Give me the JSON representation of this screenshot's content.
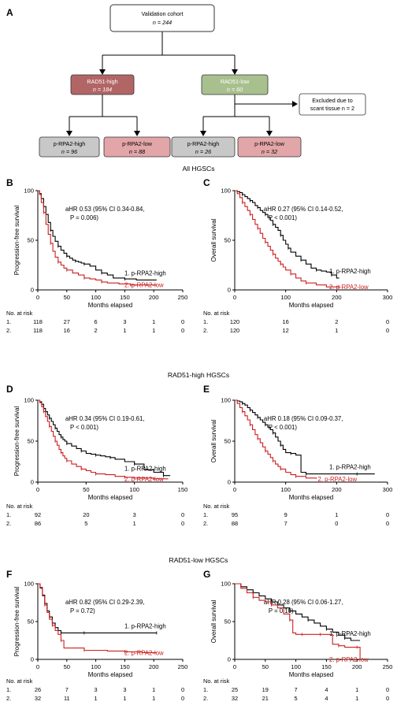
{
  "panel_letters": {
    "A": "A",
    "B": "B",
    "C": "C",
    "D": "D",
    "E": "E",
    "F": "F",
    "G": "G"
  },
  "flowchart": {
    "cohort": {
      "title": "Validation cohort",
      "n": "n = 244"
    },
    "rad51_high": {
      "title": "RAD51-high",
      "n": "n = 184"
    },
    "rad51_low": {
      "title": "RAD51-low",
      "n": "n = 60"
    },
    "excluded": {
      "line1": "Excluded due to",
      "line2": "scant tissue n = 2"
    },
    "leaves": [
      {
        "title": "p-RPA2-high",
        "n": "n = 96"
      },
      {
        "title": "p-RPA2-low",
        "n": "n = 88"
      },
      {
        "title": "p-RPA2-high",
        "n": "n = 26"
      },
      {
        "title": "p-RPA2-low",
        "n": "n = 32"
      }
    ],
    "colors": {
      "high_fill": "#b26565",
      "low_fill": "#a8c08e",
      "grey_fill": "#c8c8c8",
      "pink_fill": "#e2a6a8"
    }
  },
  "sections": {
    "all": "All HGSCs",
    "rad51_high": "RAD51-high HGSCs",
    "rad51_low": "RAD51-low HGSCs"
  },
  "colors": {
    "high_curve": "#000000",
    "low_curve": "#cc1f1f"
  },
  "risk_table_label": "No. at risk",
  "chart_data": [
    {
      "id": "B",
      "type": "line",
      "ylabel": "Progression-free survival",
      "xlabel": "Months elapsed",
      "xlim": [
        0,
        250
      ],
      "ylim": [
        0,
        100
      ],
      "xticks": [
        "0",
        "50",
        "100",
        "150",
        "200",
        "250"
      ],
      "yticks": [
        "0",
        "50",
        "100"
      ],
      "annotation": {
        "line1": "aHR 0.53 (95% CI 0.34-0.84,",
        "line2": "P = 0.006)"
      },
      "series": [
        {
          "name": "1. p-RPA2-high",
          "color": "#000000",
          "x": [
            0,
            3,
            6,
            10,
            14,
            18,
            22,
            26,
            30,
            35,
            40,
            45,
            50,
            55,
            60,
            65,
            70,
            75,
            80,
            90,
            100,
            110,
            120,
            130,
            150,
            170,
            205
          ],
          "y": [
            100,
            97,
            92,
            84,
            76,
            68,
            60,
            54,
            49,
            44,
            40,
            37,
            34,
            32,
            30,
            29,
            28,
            27,
            26,
            24,
            20,
            17,
            15,
            12,
            11,
            10,
            10
          ]
        },
        {
          "name": "2. p-RPA2-low",
          "color": "#cc1f1f",
          "x": [
            0,
            3,
            6,
            10,
            14,
            18,
            22,
            26,
            30,
            35,
            40,
            45,
            50,
            60,
            70,
            80,
            90,
            100,
            110,
            120,
            140,
            160,
            190,
            205
          ],
          "y": [
            100,
            96,
            88,
            78,
            66,
            56,
            47,
            39,
            33,
            28,
            25,
            22,
            20,
            17,
            15,
            12,
            11,
            10,
            8,
            7,
            6,
            5,
            5,
            5
          ]
        }
      ],
      "risk": {
        "ticks": [
          0,
          50,
          100,
          150,
          200,
          250
        ],
        "rows": [
          {
            "label": "1.",
            "values": [
              "118",
              "27",
              "6",
              "3",
              "1",
              "0"
            ]
          },
          {
            "label": "2.",
            "values": [
              "118",
              "16",
              "2",
              "1",
              "1",
              "0"
            ]
          }
        ]
      }
    },
    {
      "id": "C",
      "type": "line",
      "ylabel": "Overall survival",
      "xlabel": "Months elapsed",
      "xlim": [
        0,
        300
      ],
      "ylim": [
        0,
        100
      ],
      "xticks": [
        "0",
        "100",
        "200",
        "300"
      ],
      "yticks": [
        "0",
        "50",
        "100"
      ],
      "annotation": {
        "line1": "aHR 0.27 (95% CI 0.14-0.52,",
        "line2": "P < 0.001)"
      },
      "series": [
        {
          "name": "1. p-RPA2-high",
          "color": "#000000",
          "x": [
            0,
            5,
            10,
            15,
            20,
            25,
            30,
            35,
            40,
            45,
            50,
            55,
            60,
            65,
            70,
            75,
            80,
            85,
            90,
            95,
            100,
            105,
            110,
            120,
            130,
            140,
            150,
            160,
            170,
            180,
            190,
            200,
            205
          ],
          "y": [
            100,
            99,
            98,
            96,
            94,
            92,
            90,
            88,
            85,
            83,
            80,
            78,
            76,
            73,
            70,
            66,
            63,
            60,
            55,
            50,
            46,
            42,
            38,
            34,
            30,
            26,
            22,
            20,
            19,
            18,
            15,
            12,
            12
          ]
        },
        {
          "name": "2. p-RPA2-low",
          "color": "#cc1f1f",
          "x": [
            0,
            5,
            10,
            15,
            20,
            25,
            30,
            35,
            40,
            45,
            50,
            55,
            60,
            65,
            70,
            75,
            80,
            85,
            90,
            95,
            100,
            110,
            120,
            130,
            140,
            160,
            180,
            205
          ],
          "y": [
            100,
            97,
            93,
            88,
            84,
            80,
            76,
            71,
            66,
            62,
            57,
            52,
            48,
            44,
            40,
            36,
            32,
            29,
            26,
            23,
            20,
            16,
            12,
            9,
            7,
            5,
            3,
            3
          ]
        }
      ],
      "risk": {
        "ticks": [
          0,
          100,
          200,
          300
        ],
        "rows": [
          {
            "label": "1.",
            "values": [
              "120",
              "16",
              "2",
              "0"
            ]
          },
          {
            "label": "2.",
            "values": [
              "120",
              "12",
              "1",
              "0"
            ]
          }
        ]
      }
    },
    {
      "id": "D",
      "type": "line",
      "ylabel": "Progression-free survival",
      "xlabel": "Months elapsed",
      "xlim": [
        0,
        150
      ],
      "ylim": [
        0,
        100
      ],
      "xticks": [
        "0",
        "50",
        "100",
        "150"
      ],
      "yticks": [
        "0",
        "50",
        "100"
      ],
      "annotation": {
        "line1": "aHR 0.34 (95% CI 0.19-0.61,",
        "line2": "P < 0.001)"
      },
      "series": [
        {
          "name": "1. p-RPA2-high",
          "color": "#000000",
          "x": [
            0,
            2,
            4,
            6,
            8,
            10,
            12,
            14,
            16,
            18,
            20,
            22,
            24,
            26,
            28,
            30,
            35,
            40,
            45,
            50,
            55,
            60,
            65,
            70,
            75,
            80,
            90,
            100,
            110,
            120,
            130,
            137
          ],
          "y": [
            100,
            98,
            95,
            90,
            86,
            82,
            78,
            74,
            70,
            66,
            62,
            58,
            55,
            52,
            50,
            47,
            44,
            41,
            38,
            35,
            34,
            33,
            32,
            31,
            30,
            28,
            25,
            22,
            15,
            12,
            8,
            8
          ]
        },
        {
          "name": "2. p-RPA2-low",
          "color": "#cc1f1f",
          "x": [
            0,
            2,
            4,
            6,
            8,
            10,
            12,
            14,
            16,
            18,
            20,
            22,
            24,
            26,
            28,
            30,
            35,
            40,
            45,
            50,
            55,
            60,
            70,
            80,
            90,
            100,
            110,
            120,
            135
          ],
          "y": [
            100,
            97,
            92,
            86,
            80,
            74,
            68,
            62,
            56,
            50,
            45,
            40,
            36,
            32,
            29,
            26,
            22,
            19,
            16,
            14,
            12,
            10,
            9,
            7,
            6,
            5,
            5,
            4,
            4
          ]
        }
      ],
      "risk": {
        "ticks": [
          0,
          50,
          100,
          150
        ],
        "rows": [
          {
            "label": "1.",
            "values": [
              "92",
              "20",
              "3",
              "0"
            ]
          },
          {
            "label": "2.",
            "values": [
              "86",
              "5",
              "1",
              "0"
            ]
          }
        ]
      }
    },
    {
      "id": "E",
      "type": "line",
      "ylabel": "Overall survival",
      "xlabel": "Months elapsed",
      "xlim": [
        0,
        300
      ],
      "ylim": [
        0,
        100
      ],
      "xticks": [
        "0",
        "100",
        "200",
        "300"
      ],
      "yticks": [
        "0",
        "50",
        "100"
      ],
      "annotation": {
        "line1": "aHR 0.18 (95% CI 0.09-0.37,",
        "line2": "P < 0.001)"
      },
      "series": [
        {
          "name": "1. p-RPA2-high",
          "color": "#000000",
          "x": [
            0,
            5,
            10,
            15,
            20,
            25,
            30,
            35,
            40,
            45,
            50,
            55,
            60,
            65,
            70,
            75,
            80,
            85,
            90,
            95,
            100,
            110,
            120,
            130,
            140,
            160,
            200,
            240,
            275
          ],
          "y": [
            100,
            99,
            98,
            96,
            94,
            91,
            88,
            85,
            82,
            79,
            76,
            73,
            70,
            67,
            64,
            60,
            55,
            50,
            45,
            40,
            36,
            35,
            33,
            12,
            10,
            10,
            10,
            10,
            10
          ]
        },
        {
          "name": "2. p-RPA2-low",
          "color": "#cc1f1f",
          "x": [
            0,
            5,
            10,
            15,
            20,
            25,
            30,
            35,
            40,
            45,
            50,
            55,
            60,
            65,
            70,
            75,
            80,
            85,
            90,
            100,
            110,
            120,
            140,
            160
          ],
          "y": [
            100,
            96,
            91,
            86,
            81,
            76,
            70,
            64,
            58,
            53,
            48,
            43,
            38,
            34,
            30,
            26,
            22,
            19,
            16,
            12,
            9,
            7,
            5,
            4
          ]
        }
      ],
      "risk": {
        "ticks": [
          0,
          100,
          200,
          300
        ],
        "rows": [
          {
            "label": "1.",
            "values": [
              "95",
              "9",
              "1",
              "0"
            ]
          },
          {
            "label": "2.",
            "values": [
              "88",
              "7",
              "0",
              "0"
            ]
          }
        ]
      }
    },
    {
      "id": "F",
      "type": "line",
      "ylabel": "Progression-free survival",
      "xlabel": "Months elapsed",
      "xlim": [
        0,
        250
      ],
      "ylim": [
        0,
        100
      ],
      "xticks": [
        "0",
        "50",
        "100",
        "150",
        "200",
        "250"
      ],
      "yticks": [
        "0",
        "50",
        "100"
      ],
      "annotation": {
        "line1": "aHR 0.82 (95% CI 0.29-2.39,",
        "line2": "P = 0.72)"
      },
      "series": [
        {
          "name": "1. p-RPA2-high",
          "color": "#000000",
          "x": [
            0,
            4,
            8,
            12,
            16,
            20,
            25,
            30,
            35,
            40,
            50,
            60,
            80,
            100,
            150,
            205
          ],
          "y": [
            100,
            95,
            85,
            74,
            64,
            56,
            48,
            42,
            38,
            35,
            35,
            35,
            35,
            35,
            35,
            35
          ]
        },
        {
          "name": "2. p-RPA2-low",
          "color": "#cc1f1f",
          "x": [
            0,
            4,
            8,
            12,
            16,
            20,
            25,
            30,
            35,
            40,
            45,
            60,
            80,
            100,
            120,
            150,
            180,
            205
          ],
          "y": [
            100,
            94,
            84,
            72,
            62,
            53,
            45,
            38,
            33,
            25,
            15,
            15,
            12,
            12,
            11,
            10,
            9,
            9
          ]
        }
      ],
      "risk": {
        "ticks": [
          0,
          50,
          100,
          150,
          200,
          250
        ],
        "rows": [
          {
            "label": "1.",
            "values": [
              "26",
              "7",
              "3",
              "3",
              "1",
              "0"
            ]
          },
          {
            "label": "2.",
            "values": [
              "32",
              "11",
              "1",
              "1",
              "1",
              "0"
            ]
          }
        ]
      }
    },
    {
      "id": "G",
      "type": "line",
      "ylabel": "Overall survival",
      "xlabel": "Months elapsed",
      "xlim": [
        0,
        250
      ],
      "ylim": [
        0,
        100
      ],
      "xticks": [
        "0",
        "50",
        "100",
        "150",
        "200",
        "250"
      ],
      "yticks": [
        "0",
        "50",
        "100"
      ],
      "annotation": {
        "line1": "aHR 0.28 (95% CI 0.06-1.27,",
        "line2": "P = 0.10)"
      },
      "series": [
        {
          "name": "1. p-RPA2-high",
          "color": "#000000",
          "x": [
            0,
            10,
            20,
            30,
            40,
            50,
            60,
            70,
            80,
            90,
            100,
            110,
            120,
            130,
            140,
            150,
            160,
            170,
            180,
            190,
            205
          ],
          "y": [
            100,
            96,
            92,
            88,
            84,
            80,
            76,
            72,
            68,
            64,
            60,
            56,
            52,
            48,
            44,
            40,
            36,
            32,
            28,
            25,
            25
          ]
        },
        {
          "name": "2. p-RPA2-low",
          "color": "#cc1f1f",
          "x": [
            0,
            10,
            20,
            30,
            40,
            50,
            60,
            70,
            80,
            90,
            95,
            100,
            110,
            120,
            130,
            140,
            150,
            160,
            170,
            180,
            190,
            200,
            205
          ],
          "y": [
            100,
            94,
            88,
            82,
            78,
            76,
            72,
            68,
            60,
            52,
            35,
            33,
            33,
            33,
            33,
            33,
            33,
            20,
            18,
            16,
            16,
            16,
            0
          ]
        }
      ],
      "risk": {
        "ticks": [
          0,
          50,
          100,
          150,
          200,
          250
        ],
        "rows": [
          {
            "label": "1.",
            "values": [
              "25",
              "19",
              "7",
              "4",
              "1",
              "0"
            ]
          },
          {
            "label": "2.",
            "values": [
              "32",
              "21",
              "5",
              "4",
              "1",
              "0"
            ]
          }
        ]
      }
    }
  ]
}
